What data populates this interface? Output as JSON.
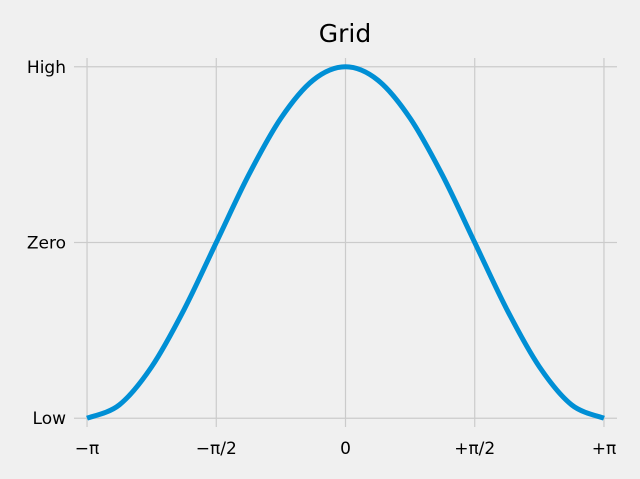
{
  "chart_data": {
    "type": "line",
    "title": "Grid",
    "xlabel": "",
    "ylabel": "",
    "xlim": [
      -3.3,
      3.3
    ],
    "ylim": [
      -1.05,
      1.05
    ],
    "grid": true,
    "x_ticks": [
      {
        "value": -3.14159,
        "label": "−π"
      },
      {
        "value": -1.5708,
        "label": "−π/2"
      },
      {
        "value": 0,
        "label": "0"
      },
      {
        "value": 1.5708,
        "label": "+π/2"
      },
      {
        "value": 3.14159,
        "label": "+π"
      }
    ],
    "y_ticks": [
      {
        "value": -1,
        "label": "Low"
      },
      {
        "value": 0,
        "label": "Zero"
      },
      {
        "value": 1,
        "label": "High"
      }
    ],
    "series": [
      {
        "color": "#008fd5",
        "x": [
          -3.14159,
          -2.74889,
          -2.35619,
          -1.9635,
          -1.5708,
          -1.1781,
          -0.7854,
          -0.3927,
          0,
          0.3927,
          0.7854,
          1.1781,
          1.5708,
          1.9635,
          2.35619,
          2.74889,
          3.14159
        ],
        "y": [
          -1,
          -0.924,
          -0.707,
          -0.383,
          0,
          0.383,
          0.707,
          0.924,
          1,
          0.924,
          0.707,
          0.383,
          0,
          -0.383,
          -0.707,
          -0.924,
          -1
        ]
      }
    ]
  }
}
